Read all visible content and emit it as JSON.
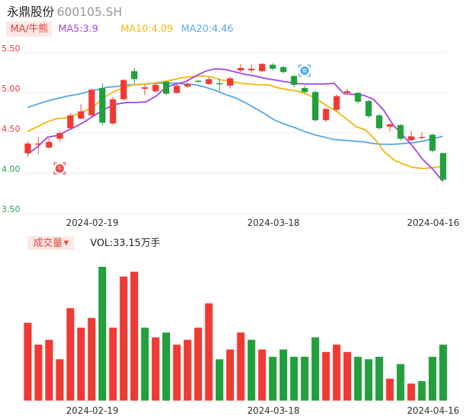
{
  "header": {
    "name": "永鼎股份",
    "code": "600105.SH"
  },
  "legend": {
    "ma_button": "MA/牛熊",
    "ma5": "MA5:3.9",
    "ma10": "MA10:4.09",
    "ma20": "MA20:4.46"
  },
  "volume_panel": {
    "button": "成交量",
    "button_icon": "triangle-down-icon",
    "label": "VOL:33.15万手"
  },
  "colors": {
    "up": "#f03a33",
    "down": "#22a03c",
    "ma5": "#a547e6",
    "ma10": "#f2b90c",
    "ma20": "#58a8ea",
    "grid": "#ececec"
  },
  "chart_data": [
    {
      "type": "candlestick",
      "y_ticks": [
        "5.50",
        "5.00",
        "4.50",
        "4.00",
        "3.50"
      ],
      "ylim": [
        3.5,
        5.5
      ],
      "x_tick_labels": [
        {
          "index": 3,
          "label": "2024-02-19"
        },
        {
          "index": 20,
          "label": "2024-03-18"
        },
        {
          "index": 35,
          "label": "2024-04-16"
        }
      ],
      "markers": [
        {
          "index": 3,
          "label": "牛",
          "icon": "bull-icon"
        },
        {
          "index": 26,
          "label": "熊",
          "icon": "bear-icon"
        }
      ],
      "candles": [
        [
          4.25,
          4.37,
          4.4,
          4.2
        ],
        [
          4.36,
          4.37,
          4.45,
          4.24
        ],
        [
          4.32,
          4.39,
          4.44,
          4.31
        ],
        [
          4.43,
          4.5,
          4.53,
          4.39
        ],
        [
          4.56,
          4.72,
          4.75,
          4.54
        ],
        [
          4.68,
          4.77,
          4.86,
          4.67
        ],
        [
          4.72,
          5.04,
          5.05,
          4.7
        ],
        [
          5.06,
          4.63,
          5.12,
          4.6
        ],
        [
          4.62,
          4.92,
          4.95,
          4.61
        ],
        [
          4.92,
          5.16,
          5.17,
          4.91
        ],
        [
          5.27,
          5.17,
          5.31,
          5.11
        ],
        [
          5.05,
          5.07,
          5.1,
          4.97
        ],
        [
          5.02,
          5.1,
          5.13,
          5.0
        ],
        [
          5.14,
          4.99,
          5.14,
          4.97
        ],
        [
          5.0,
          5.09,
          5.12,
          4.99
        ],
        [
          5.08,
          5.11,
          5.13,
          5.06
        ],
        [
          5.15,
          5.14,
          5.16,
          5.12
        ],
        [
          5.11,
          5.17,
          5.2,
          5.1
        ],
        [
          5.12,
          5.11,
          5.18,
          5.03
        ],
        [
          5.09,
          5.18,
          5.2,
          5.05
        ],
        [
          5.28,
          5.31,
          5.36,
          5.26
        ],
        [
          5.28,
          5.3,
          5.35,
          5.25
        ],
        [
          5.27,
          5.36,
          5.37,
          5.26
        ],
        [
          5.35,
          5.3,
          5.37,
          5.28
        ],
        [
          5.32,
          5.26,
          5.34,
          5.24
        ],
        [
          5.21,
          5.1,
          5.22,
          5.07
        ],
        [
          5.06,
          5.01,
          5.09,
          4.99
        ],
        [
          5.01,
          4.66,
          5.03,
          4.64
        ],
        [
          4.66,
          4.8,
          4.81,
          4.64
        ],
        [
          4.79,
          4.96,
          4.98,
          4.77
        ],
        [
          5.0,
          5.02,
          5.05,
          4.98
        ],
        [
          5.0,
          4.89,
          5.01,
          4.87
        ],
        [
          4.9,
          4.71,
          4.91,
          4.69
        ],
        [
          4.72,
          4.56,
          4.74,
          4.54
        ],
        [
          4.58,
          4.61,
          4.62,
          4.52
        ],
        [
          4.6,
          4.43,
          4.61,
          4.41
        ],
        [
          4.41,
          4.46,
          4.53,
          4.4
        ],
        [
          4.44,
          4.45,
          4.51,
          4.42
        ],
        [
          4.48,
          4.28,
          4.49,
          4.26
        ],
        [
          4.25,
          3.92,
          4.26,
          3.9
        ]
      ],
      "ma": {
        "ma5": [
          4.24,
          4.33,
          4.45,
          4.47,
          4.53,
          4.59,
          4.66,
          4.74,
          4.81,
          4.86,
          4.88,
          4.88,
          4.89,
          4.96,
          5.07,
          5.11,
          5.14,
          5.21,
          5.27,
          5.3,
          5.29,
          5.26,
          5.23,
          5.21,
          5.18,
          5.16,
          5.14,
          5.12,
          5.11,
          5.11,
          5.11,
          5.12,
          4.99,
          4.98,
          4.97,
          4.92,
          4.79,
          4.6,
          4.47,
          4.33,
          4.17,
          4.05,
          3.9
        ],
        "ma10": [
          4.52,
          4.58,
          4.64,
          4.68,
          4.69,
          4.73,
          4.78,
          4.85,
          4.95,
          5.02,
          5.07,
          5.1,
          5.11,
          5.12,
          5.14,
          5.16,
          5.19,
          5.2,
          5.21,
          5.2,
          5.16,
          5.15,
          5.12,
          5.11,
          5.1,
          5.1,
          5.06,
          5.04,
          5.02,
          4.98,
          4.92,
          4.84,
          4.77,
          4.68,
          4.58,
          4.54,
          4.42,
          4.26,
          4.16,
          4.11,
          4.07,
          4.06,
          4.07,
          4.09
        ],
        "ma20": [
          4.82,
          4.86,
          4.9,
          4.93,
          4.96,
          4.98,
          5.01,
          5.04,
          5.07,
          5.08,
          5.1,
          5.1,
          5.11,
          5.12,
          5.12,
          5.12,
          5.11,
          5.1,
          5.07,
          5.03,
          4.98,
          4.94,
          4.88,
          4.81,
          4.74,
          4.66,
          4.61,
          4.57,
          4.52,
          4.48,
          4.45,
          4.42,
          4.41,
          4.4,
          4.39,
          4.37,
          4.36,
          4.36,
          4.37,
          4.38,
          4.4,
          4.43,
          4.46
        ]
      }
    },
    {
      "type": "bar",
      "series_name": "VOL",
      "values": [
        32,
        23,
        25,
        17,
        38,
        30,
        34,
        55,
        30,
        51,
        53,
        30,
        26,
        28,
        23,
        25,
        30,
        40,
        17,
        21,
        28,
        25,
        21,
        18,
        21,
        18,
        18,
        26,
        20,
        23,
        20,
        18,
        17,
        18,
        9,
        15,
        7,
        8,
        18,
        23
      ],
      "directions": [
        "up",
        "up",
        "up",
        "up",
        "up",
        "up",
        "up",
        "down",
        "up",
        "up",
        "up",
        "down",
        "up",
        "down",
        "up",
        "up",
        "up",
        "up",
        "down",
        "up",
        "up",
        "down",
        "up",
        "down",
        "down",
        "down",
        "down",
        "down",
        "up",
        "up",
        "up",
        "down",
        "down",
        "down",
        "up",
        "down",
        "up",
        "down",
        "down",
        "down"
      ]
    }
  ]
}
